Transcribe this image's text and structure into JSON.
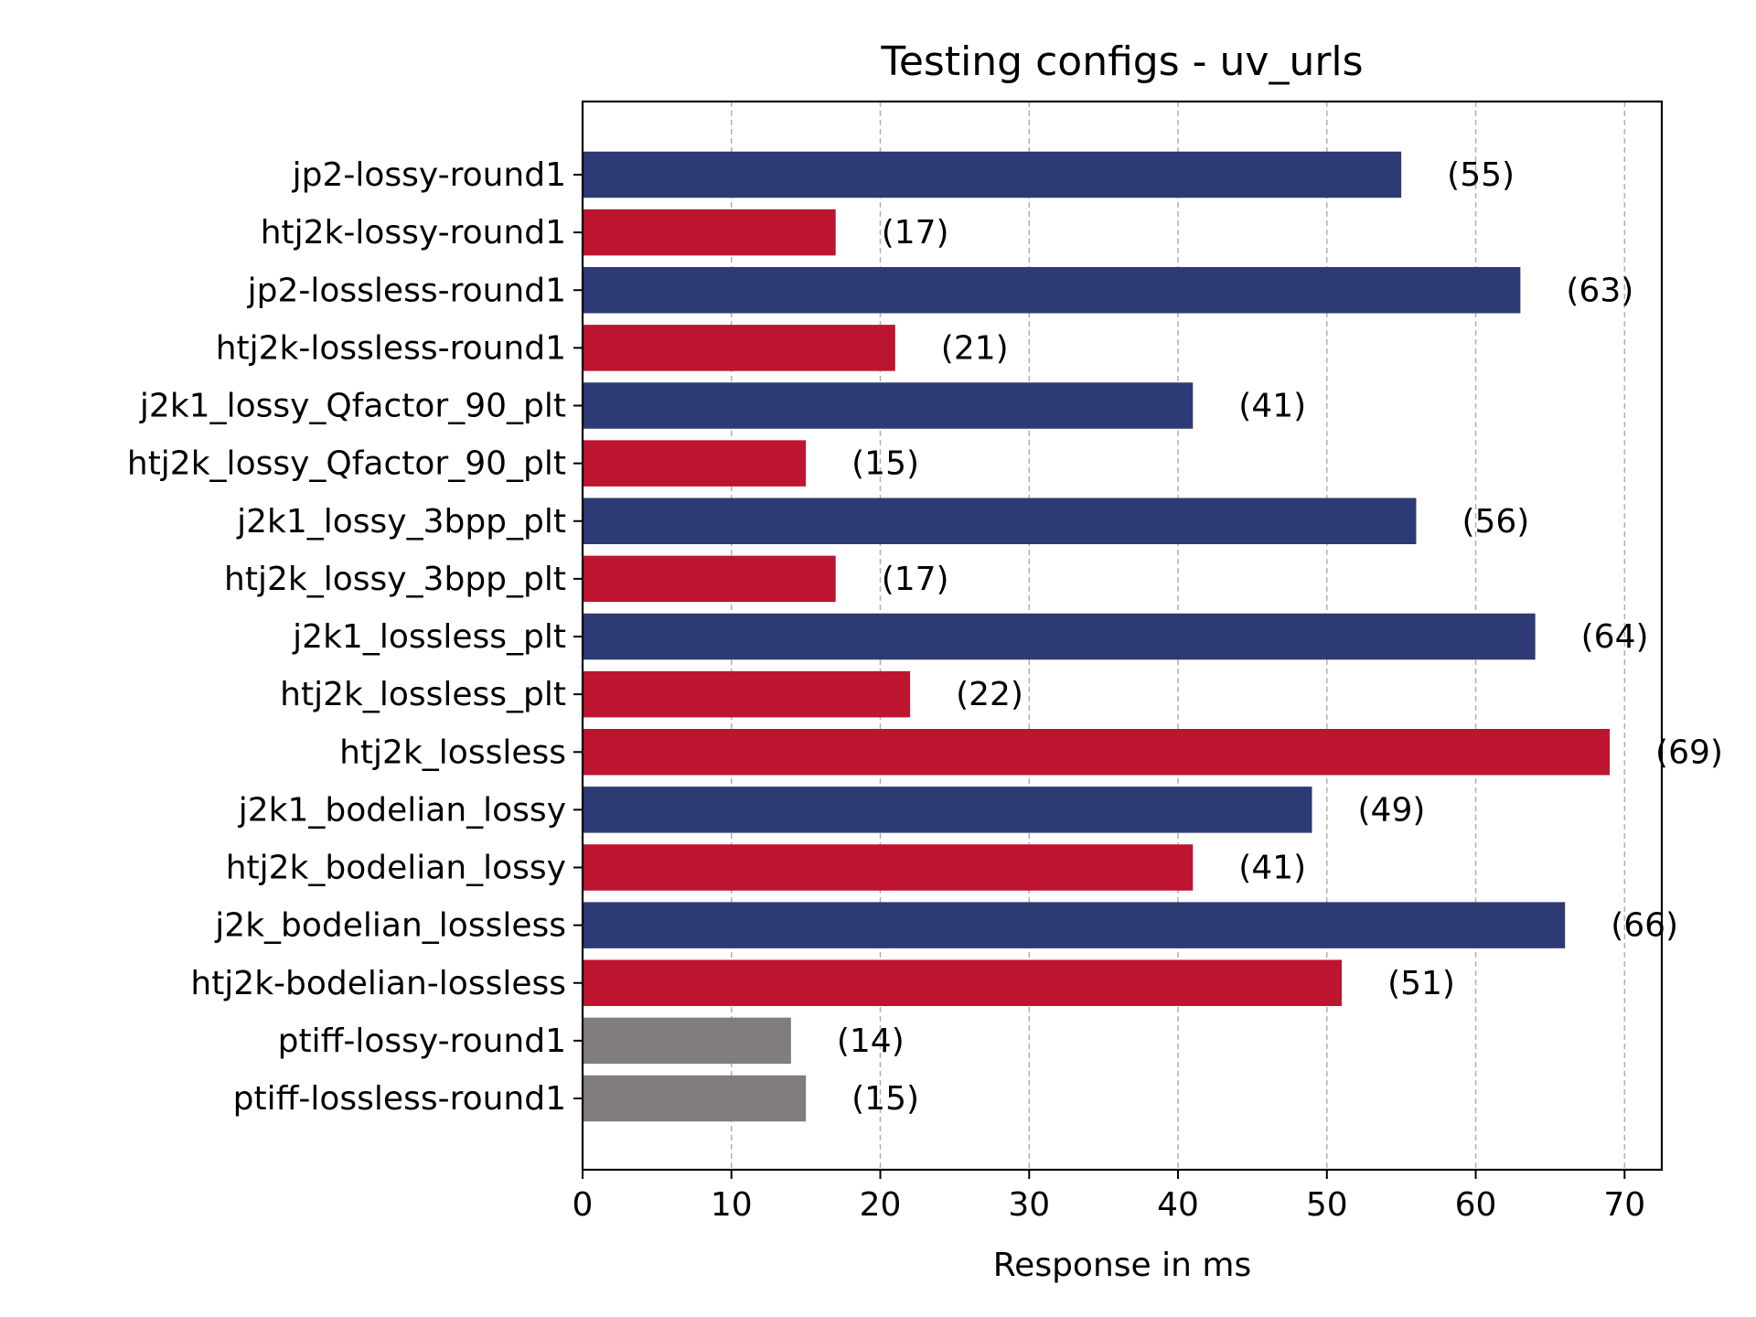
{
  "chart_data": {
    "type": "bar",
    "orientation": "horizontal",
    "title": "Testing configs - uv_urls",
    "xlabel": "Response in ms",
    "ylabel": "",
    "xlim": [
      0,
      72.5
    ],
    "xticks": [
      "0",
      "10",
      "20",
      "30",
      "40",
      "50",
      "60",
      "70"
    ],
    "grid": "x-dashed",
    "colors": {
      "j2k": "#2e3a74",
      "htj2k": "#bd1430",
      "ptiff": "#817d7d"
    },
    "bars": [
      {
        "label": "jp2-lossy-round1",
        "value": 55,
        "data_label": "(55)",
        "group": "j2k"
      },
      {
        "label": "htj2k-lossy-round1",
        "value": 17,
        "data_label": "(17)",
        "group": "htj2k"
      },
      {
        "label": "jp2-lossless-round1",
        "value": 63,
        "data_label": "(63)",
        "group": "j2k"
      },
      {
        "label": "htj2k-lossless-round1",
        "value": 21,
        "data_label": "(21)",
        "group": "htj2k"
      },
      {
        "label": "j2k1_lossy_Qfactor_90_plt",
        "value": 41,
        "data_label": "(41)",
        "group": "j2k"
      },
      {
        "label": "htj2k_lossy_Qfactor_90_plt",
        "value": 15,
        "data_label": "(15)",
        "group": "htj2k"
      },
      {
        "label": "j2k1_lossy_3bpp_plt",
        "value": 56,
        "data_label": "(56)",
        "group": "j2k"
      },
      {
        "label": "htj2k_lossy_3bpp_plt",
        "value": 17,
        "data_label": "(17)",
        "group": "htj2k"
      },
      {
        "label": "j2k1_lossless_plt",
        "value": 64,
        "data_label": "(64)",
        "group": "j2k"
      },
      {
        "label": "htj2k_lossless_plt",
        "value": 22,
        "data_label": "(22)",
        "group": "htj2k"
      },
      {
        "label": "htj2k_lossless",
        "value": 69,
        "data_label": "(69)",
        "group": "htj2k"
      },
      {
        "label": "j2k1_bodelian_lossy",
        "value": 49,
        "data_label": "(49)",
        "group": "j2k"
      },
      {
        "label": "htj2k_bodelian_lossy",
        "value": 41,
        "data_label": "(41)",
        "group": "htj2k"
      },
      {
        "label": "j2k_bodelian_lossless",
        "value": 66,
        "data_label": "(66)",
        "group": "j2k"
      },
      {
        "label": "htj2k-bodelian-lossless",
        "value": 51,
        "data_label": "(51)",
        "group": "htj2k"
      },
      {
        "label": "ptiff-lossy-round1",
        "value": 14,
        "data_label": "(14)",
        "group": "ptiff"
      },
      {
        "label": "ptiff-lossless-round1",
        "value": 15,
        "data_label": "(15)",
        "group": "ptiff"
      }
    ]
  }
}
